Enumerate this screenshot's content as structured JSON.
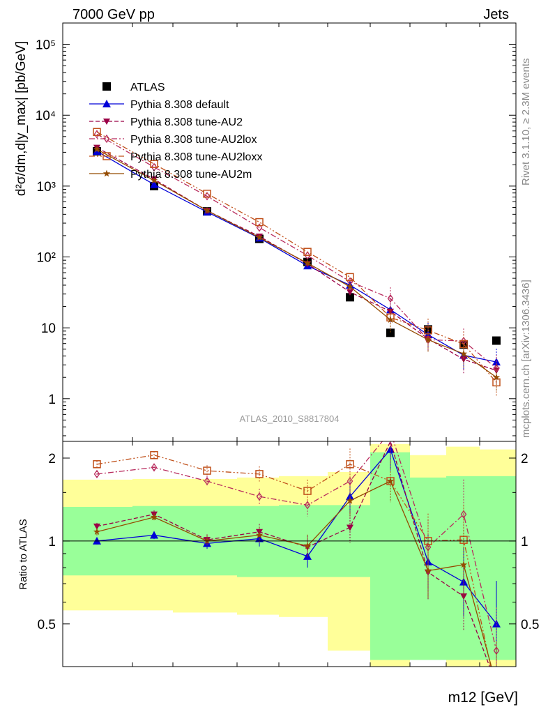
{
  "header": {
    "left": "7000 GeV pp",
    "right": "Jets"
  },
  "side_labels": {
    "rivet": "Rivet 3.1.10, ≥ 2.3M events",
    "source": "mcplots.cern.ch [arXiv:1306.3436]"
  },
  "watermark": "ATLAS_2010_S8817804",
  "chart_data": {
    "type": "scatter",
    "title": "7000 GeV pp  Jets",
    "xlabel": "m12 [GeV]",
    "ylabel": "d²σ/dm,d|y_max| [pb/GeV]",
    "ratio_ylabel": "Ratio to ATLAS",
    "yscale": "log",
    "ylim": [
      0.25,
      200000
    ],
    "ratio_ylim": [
      0.35,
      2.3
    ],
    "y_ticks": [
      "1",
      "10",
      "10²",
      "10³",
      "10⁴",
      "10⁵"
    ],
    "ratio_ticks": [
      "0.5",
      "1",
      "2"
    ],
    "bins": [
      1,
      2,
      3,
      4,
      5,
      6,
      7,
      8,
      9,
      10
    ],
    "series": [
      {
        "name": "ATLAS",
        "color": "#000000",
        "marker": "square",
        "values": [
          3100,
          1000,
          440,
          180,
          85,
          27,
          8.5,
          9.5,
          5.8,
          6.6
        ]
      },
      {
        "name": "Pythia 8.308 default",
        "color": "#0000d8",
        "marker": "triangle-up",
        "dash": "solid",
        "values": [
          3100,
          1050,
          430,
          185,
          75,
          40,
          18,
          8,
          4.1,
          3.3
        ],
        "ratio": [
          1.0,
          1.05,
          0.98,
          1.02,
          0.88,
          1.45,
          2.15,
          0.84,
          0.71,
          0.5
        ]
      },
      {
        "name": "Pythia 8.308 tune-AU2",
        "color": "#9b0046",
        "marker": "triangle-down",
        "dash": "dashed",
        "values": [
          3500,
          1250,
          450,
          195,
          80,
          32,
          17,
          7,
          3.6,
          2.5
        ],
        "ratio": [
          1.13,
          1.25,
          1.01,
          1.08,
          0.95,
          1.12,
          2.3,
          0.77,
          0.63,
          0.3
        ]
      },
      {
        "name": "Pythia 8.308 tune-AU2lox",
        "color": "#b82b5d",
        "marker": "diamond-open",
        "dash": "dashdot",
        "values": [
          5400,
          1850,
          720,
          260,
          105,
          45,
          26,
          6.8,
          6.5,
          2.7
        ],
        "ratio": [
          1.75,
          1.85,
          1.65,
          1.45,
          1.35,
          1.65,
          2.5,
          0.95,
          1.25,
          0.4
        ]
      },
      {
        "name": "Pythia 8.308 tune-AU2loxx",
        "color": "#c0501a",
        "marker": "square-open",
        "dash": "dashdotdot",
        "values": [
          5800,
          2050,
          780,
          310,
          118,
          52,
          14,
          9.2,
          5.9,
          1.7
        ],
        "ratio": [
          1.9,
          2.05,
          1.8,
          1.75,
          1.52,
          1.9,
          1.65,
          1.0,
          1.01,
          0.28
        ]
      },
      {
        "name": "Pythia 8.308 tune-AU2m",
        "color": "#944b00",
        "marker": "star",
        "dash": "solid",
        "values": [
          3300,
          1200,
          450,
          188,
          82,
          38,
          13,
          6.8,
          4.3,
          2.0
        ],
        "ratio": [
          1.08,
          1.22,
          1.0,
          1.05,
          0.96,
          1.4,
          1.65,
          0.78,
          0.82,
          0.3
        ]
      }
    ],
    "bands": {
      "green_lo": [
        0.75,
        0.75,
        0.75,
        0.74,
        0.74,
        0.74,
        0.37,
        0.37,
        0.37,
        0.37
      ],
      "green_hi": [
        1.33,
        1.34,
        1.34,
        1.34,
        1.35,
        1.35,
        2.1,
        1.7,
        1.72,
        1.72
      ],
      "yellow_lo": [
        0.56,
        0.56,
        0.55,
        0.54,
        0.53,
        0.4,
        0.35,
        0.41,
        0.35,
        0.35
      ],
      "yellow_hi": [
        1.67,
        1.68,
        1.68,
        1.7,
        1.72,
        1.78,
        2.25,
        2.05,
        2.2,
        2.15
      ]
    }
  }
}
